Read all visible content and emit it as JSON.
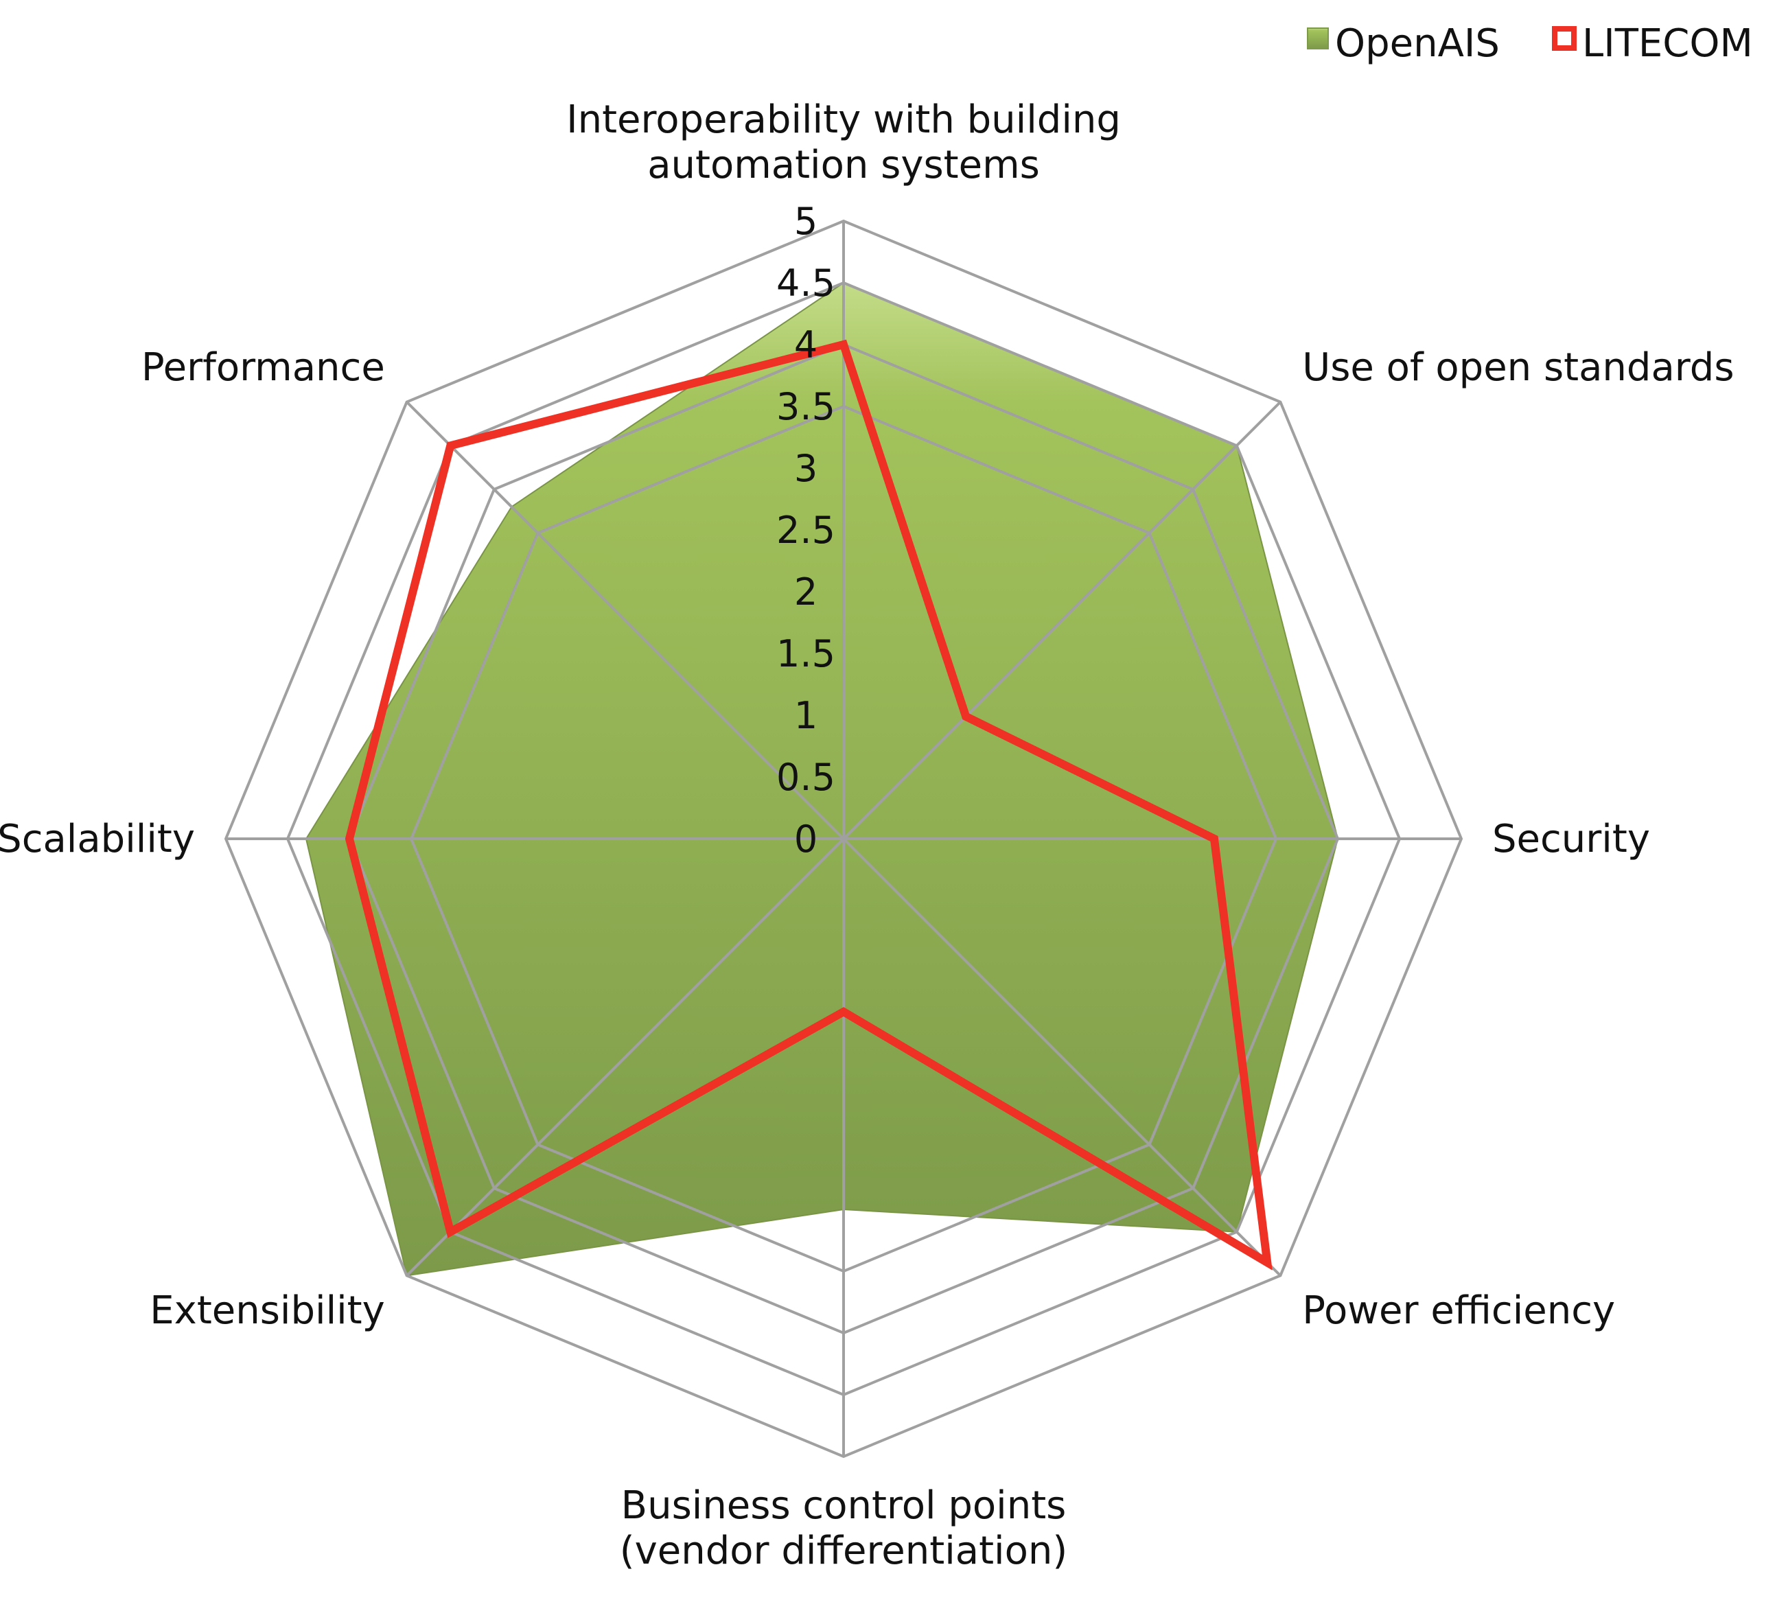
{
  "chart_data": {
    "type": "radar",
    "categories": [
      "Interoperability with building automation  systems",
      "Use of open standards",
      "Security",
      "Power efficiency",
      "Business control points (vendor differentiation)",
      "Extensibility",
      "Scalability",
      "Performance"
    ],
    "category_lines": [
      [
        "Interoperability with building",
        "automation  systems"
      ],
      [
        "Use of open standards"
      ],
      [
        "Security"
      ],
      [
        "Power efficiency"
      ],
      [
        "Business control points",
        "(vendor differentiation)"
      ],
      [
        "Extensibility"
      ],
      [
        "Scalability"
      ],
      [
        "Performance"
      ]
    ],
    "series": [
      {
        "name": "OpenAIS",
        "values": [
          4.5,
          4.5,
          4.0,
          4.5,
          3.0,
          5.0,
          4.35,
          3.8
        ],
        "color": "#9bbb59",
        "style": "filled"
      },
      {
        "name": "LITECOM",
        "values": [
          4.0,
          1.4,
          3.0,
          4.85,
          1.4,
          4.5,
          4.0,
          4.5
        ],
        "color": "#ee3124",
        "style": "line"
      }
    ],
    "rlim": [
      0,
      5
    ],
    "ticks": [
      "0",
      "0.5",
      "1",
      "1.5",
      "2",
      "2.5",
      "3",
      "3.5",
      "4",
      "4.5",
      "5"
    ],
    "gridlines": [
      3.5,
      4.0,
      4.5,
      5.0
    ],
    "legend_position": "top-right",
    "grid_color": "#a0a0a0"
  }
}
